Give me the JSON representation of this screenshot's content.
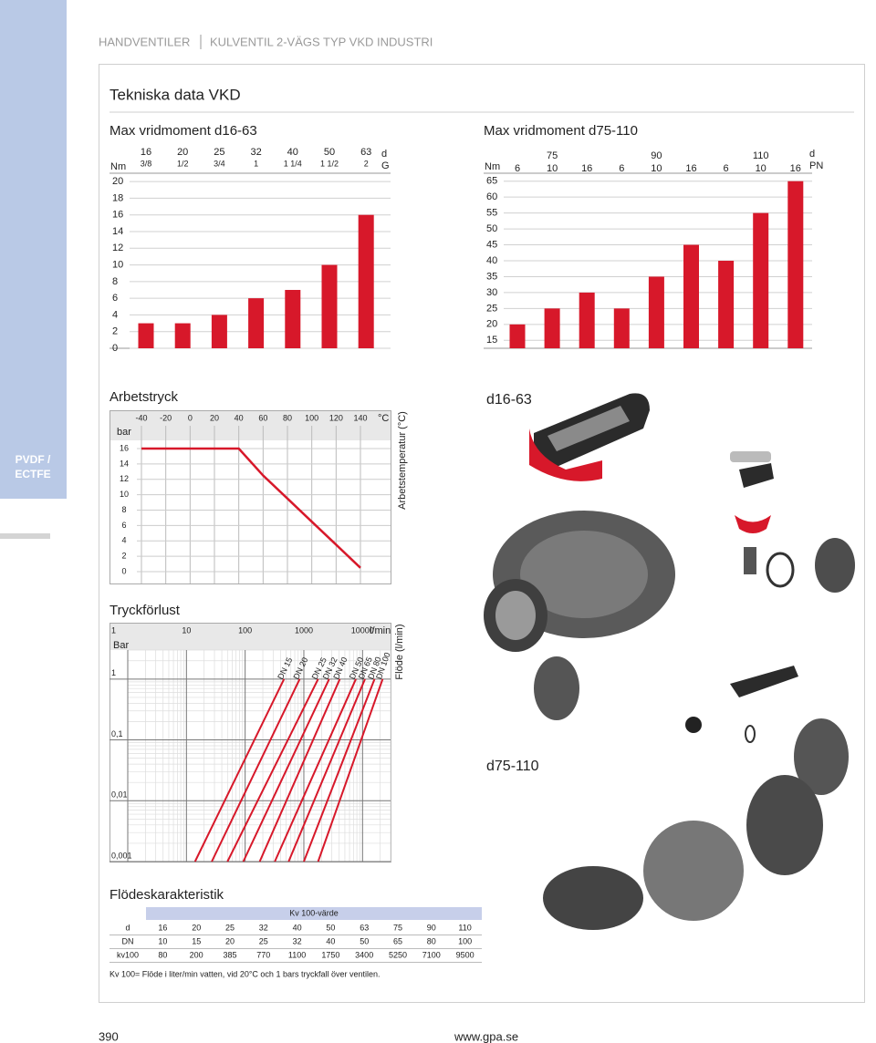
{
  "header": {
    "category": "HANDVENTILER",
    "product": "KULVENTIL 2-VÄGS TYP VKD INDUSTRI"
  },
  "section_title": "Tekniska data VKD",
  "side_tab": [
    "PVDF /",
    "ECTFE"
  ],
  "chart_data": [
    {
      "type": "bar",
      "title": "Max vridmoment d16-63",
      "y_label": "Nm",
      "header_labels": [
        "d",
        "G"
      ],
      "categories": [
        16,
        20,
        25,
        32,
        40,
        50,
        63
      ],
      "sublabels": [
        "3/8",
        "1/2",
        "3/4",
        "1",
        "1 1/4",
        "1 1/2",
        "2"
      ],
      "values": [
        3,
        3,
        4,
        6,
        7,
        10,
        16
      ],
      "color": "#d7182a",
      "ylim": [
        0,
        21
      ],
      "yticks": [
        0,
        2,
        4,
        6,
        8,
        10,
        12,
        14,
        16,
        18,
        20
      ],
      "grid": true
    },
    {
      "type": "bar",
      "title": "Max vridmoment d75-110",
      "y_label": "Nm",
      "header_labels": [
        "d",
        "PN"
      ],
      "groups": [
        75,
        90,
        110
      ],
      "categories": [
        6,
        10,
        16,
        6,
        10,
        16,
        6,
        10,
        16
      ],
      "values": [
        20,
        25,
        30,
        25,
        35,
        45,
        40,
        55,
        65
      ],
      "color": "#d7182a",
      "ylim": [
        12.5,
        67.5
      ],
      "yticks": [
        15,
        20,
        25,
        30,
        35,
        40,
        45,
        50,
        55,
        60,
        65
      ],
      "grid": true
    },
    {
      "type": "line",
      "title": "Arbetstryck",
      "x_unit": "°C",
      "y_label": "bar",
      "y2_label": "Arbetstemperatur (°C)",
      "x": [
        -40,
        40,
        60,
        80,
        100,
        120,
        140
      ],
      "values": [
        16,
        16,
        12.5,
        9.5,
        6.5,
        3.5,
        0.5
      ],
      "color": "#d7182a",
      "xlim": [
        -40,
        140
      ],
      "xticks": [
        -40,
        -20,
        0,
        20,
        40,
        60,
        80,
        100,
        120,
        140
      ],
      "ylim": [
        0,
        16
      ],
      "yticks": [
        0,
        2,
        4,
        6,
        8,
        10,
        12,
        14,
        16
      ],
      "grid": true
    },
    {
      "type": "loglog",
      "title": "Tryckförlust",
      "x_unit": "l/min",
      "y_label": "Bar",
      "y2_label": "Flöde (l/min)",
      "log_x": true,
      "log_y": true,
      "grid": true,
      "xlim": [
        1,
        30000
      ],
      "xticks": [
        1,
        10,
        100,
        1000,
        10000
      ],
      "ylim": [
        0.001,
        3
      ],
      "yticks": [
        1,
        {
          "value": 0.1,
          "label": "0,1"
        },
        {
          "value": 0.01,
          "label": "0,01"
        },
        {
          "value": 0.001,
          "label": "0,001"
        }
      ],
      "series": [
        {
          "name": "DN 15",
          "color": "#d7182a",
          "x": [
            14,
            460
          ],
          "values": [
            0.001,
            1
          ]
        },
        {
          "name": "DN 20",
          "color": "#d7182a",
          "x": [
            27,
            850
          ],
          "values": [
            0.001,
            1
          ]
        },
        {
          "name": "DN 25",
          "color": "#d7182a",
          "x": [
            50,
            1750
          ],
          "values": [
            0.001,
            1
          ]
        },
        {
          "name": "DN 32",
          "color": "#d7182a",
          "x": [
            93,
            2700
          ],
          "values": [
            0.001,
            1
          ]
        },
        {
          "name": "DN 40",
          "color": "#d7182a",
          "x": [
            177,
            4100
          ],
          "values": [
            0.001,
            1
          ]
        },
        {
          "name": "DN 50",
          "color": "#d7182a",
          "x": [
            320,
            7700
          ],
          "values": [
            0.001,
            1
          ]
        },
        {
          "name": "DN 65",
          "color": "#d7182a",
          "x": [
            550,
            11000
          ],
          "values": [
            0.001,
            1
          ]
        },
        {
          "name": "DN 80",
          "color": "#d7182a",
          "x": [
            1000,
            16000
          ],
          "values": [
            0.001,
            1
          ]
        },
        {
          "name": "DN 100",
          "color": "#d7182a",
          "x": [
            1750,
            22000
          ],
          "values": [
            0.001,
            1
          ]
        }
      ]
    }
  ],
  "images": [
    {
      "caption": "d16-63"
    },
    {
      "caption": "d75-110"
    }
  ],
  "table": {
    "title": "Flödeskarakteristik",
    "header": "Kv 100-värde",
    "rows": [
      [
        "d",
        16,
        20,
        25,
        32,
        40,
        50,
        63,
        75,
        90,
        110
      ],
      [
        "DN",
        10,
        15,
        20,
        25,
        32,
        40,
        50,
        65,
        80,
        100
      ],
      [
        "kv100",
        80,
        200,
        385,
        770,
        1100,
        1750,
        3400,
        5250,
        7100,
        9500
      ]
    ],
    "note": "Kv 100= Flöde i liter/min vatten, vid 20°C och 1 bars tryckfall över ventilen."
  },
  "footer": {
    "page": "390",
    "url": "www.gpa.se"
  }
}
